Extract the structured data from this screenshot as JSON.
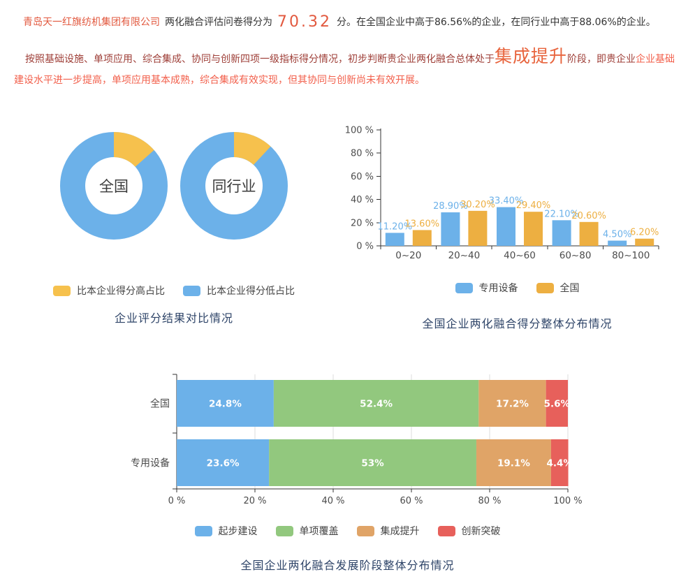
{
  "colors": {
    "accent_orange": "#E2593F",
    "dark_red": "#9E3E37",
    "bright_red": "#F2604C",
    "stage_orange": "#E8643D",
    "title_navy": "#2E4468"
  },
  "report": {
    "intro": {
      "company": "青岛天一红旗纺机集团有限公司",
      "mid": "两化融合评估问卷得分为",
      "score": "70.32",
      "suffix": "分。在全国企业中高于86.56%的企业，在同行业中高于88.06%的企业。"
    },
    "assessment": {
      "part1": "按照基础设施、单项应用、综合集成、协同与创新四项一级指标得分情况，初步判断贵企业两化融合总体处于",
      "stage": "集成提升",
      "part2": "阶段，即贵企业",
      "part3": "企业基础建设水平进一步提高，单项应用基本成熟，综合集成有效实现，但其协同与创新尚未有效开展。"
    }
  },
  "chart_data": [
    {
      "type": "pie",
      "subtype": "donut-pair",
      "title": "企业评分结果对比情况",
      "legend": [
        {
          "label": "比本企业得分高占比",
          "color": "#F6C14D"
        },
        {
          "label": "比本企业得分低占比",
          "color": "#6CB1E9"
        }
      ],
      "donuts": [
        {
          "label": "全国",
          "slices": [
            {
              "name": "比本企业得分高占比",
              "value": 13.44
            },
            {
              "name": "比本企业得分低占比",
              "value": 86.56
            }
          ]
        },
        {
          "label": "同行业",
          "slices": [
            {
              "name": "比本企业得分高占比",
              "value": 11.94
            },
            {
              "name": "比本企业得分低占比",
              "value": 88.06
            }
          ]
        }
      ]
    },
    {
      "type": "bar",
      "title": "全国企业两化融合得分整体分布情况",
      "categories": [
        "0~20",
        "20~40",
        "40~60",
        "60~80",
        "80~100"
      ],
      "series": [
        {
          "name": "专用设备",
          "color": "#6CB1E9",
          "values": [
            11.2,
            28.9,
            33.4,
            22.1,
            4.5
          ],
          "labels": [
            "11.20%",
            "28.90%",
            "33.40%",
            "22.10%",
            "4.50%"
          ]
        },
        {
          "name": "全国",
          "color": "#EDAF41",
          "values": [
            13.6,
            30.2,
            29.4,
            20.6,
            6.2
          ],
          "labels": [
            "13.60%",
            "30.20%",
            "29.40%",
            "20.60%",
            "6.20%"
          ]
        }
      ],
      "yticks": [
        "0 %",
        "20 %",
        "40 %",
        "60 %",
        "80 %",
        "100 %"
      ],
      "ylim": [
        0,
        100
      ],
      "grid": false,
      "legend_position": "bottom"
    },
    {
      "type": "bar",
      "subtype": "stacked-horizontal",
      "title": "全国企业两化融合发展阶段整体分布情况",
      "categories": [
        "全国",
        "专用设备"
      ],
      "series": [
        {
          "name": "起步建设",
          "color": "#6CB1E9",
          "values": [
            24.8,
            23.6
          ],
          "labels": [
            "24.8%",
            "23.6%"
          ]
        },
        {
          "name": "单项覆盖",
          "color": "#92C87E",
          "values": [
            52.4,
            53
          ],
          "labels": [
            "52.4%",
            "53%"
          ]
        },
        {
          "name": "集成提升",
          "color": "#E0A467",
          "values": [
            17.2,
            19.1
          ],
          "labels": [
            "17.2%",
            "19.1%"
          ]
        },
        {
          "name": "创新突破",
          "color": "#E7605B",
          "values": [
            5.6,
            4.4
          ],
          "labels": [
            "5.6%",
            "4.4%"
          ]
        }
      ],
      "xticks": [
        "0 %",
        "20 %",
        "40 %",
        "60 %",
        "80 %",
        "100 %"
      ],
      "xlim": [
        0,
        100
      ],
      "grid": true,
      "legend_position": "bottom"
    }
  ]
}
